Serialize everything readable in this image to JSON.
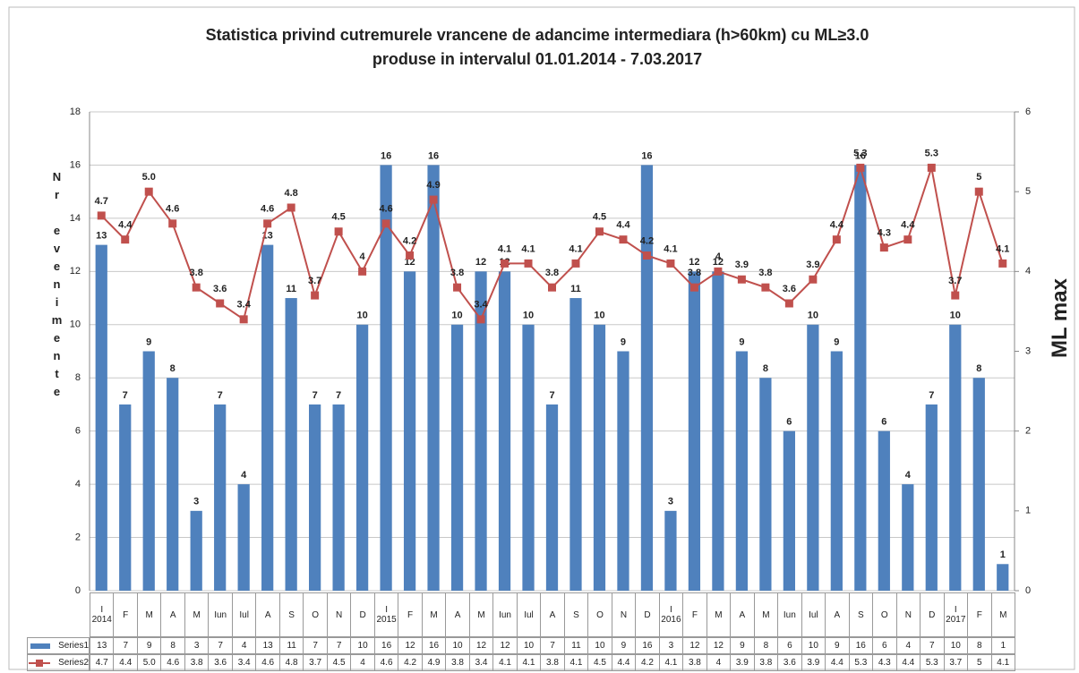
{
  "chart_data": {
    "type": "bar-line",
    "title": "Statistica privind cutremurele vrancene de adancime intermediara (h>60km) cu ML≥3.0 produse in intervalul 01.01.2014 - 7.03.2017",
    "y_label": "Nr evenimente",
    "y2_label": "ML max",
    "categories": [
      "I 2014",
      "F",
      "M",
      "A",
      "M",
      "Iun",
      "Iul",
      "A",
      "S",
      "O",
      "N",
      "D",
      "I 2015",
      "F",
      "M",
      "A",
      "M",
      "Iun",
      "Iul",
      "A",
      "S",
      "O",
      "N",
      "D",
      "I 2016",
      "F",
      "M",
      "A",
      "M",
      "Iun",
      "Iul",
      "A",
      "S",
      "O",
      "N",
      "D",
      "I 2017",
      "F",
      "M"
    ],
    "series": [
      {
        "name": "Series1",
        "type": "bar",
        "color": "#4f81bd",
        "values": [
          13,
          7,
          9,
          8,
          3,
          7,
          4,
          13,
          11,
          7,
          7,
          10,
          16,
          12,
          16,
          10,
          12,
          12,
          10,
          7,
          11,
          10,
          9,
          16,
          3,
          12,
          12,
          9,
          8,
          6,
          10,
          9,
          16,
          6,
          4,
          7,
          10,
          8,
          1
        ]
      },
      {
        "name": "Series2",
        "type": "line",
        "axis": "y2",
        "color": "#c0504d",
        "values": [
          4.7,
          4.4,
          5.0,
          4.6,
          3.8,
          3.6,
          3.4,
          4.6,
          4.8,
          3.7,
          4.5,
          4,
          4.6,
          4.2,
          4.9,
          3.8,
          3.4,
          4.1,
          4.1,
          3.8,
          4.1,
          4.5,
          4.4,
          4.2,
          4.1,
          3.8,
          4,
          3.9,
          3.8,
          3.6,
          3.9,
          4.4,
          5.3,
          4.3,
          4.4,
          5.3,
          3.7,
          5,
          4.1
        ],
        "value_labels": [
          "4.7",
          "4.4",
          "5.0",
          "4.6",
          "3.8",
          "3.6",
          "3.4",
          "4.6",
          "4.8",
          "3.7",
          "4.5",
          "4",
          "4.6",
          "4.2",
          "4.9",
          "3.8",
          "3.4",
          "4.1",
          "4.1",
          "3.8",
          "4.1",
          "4.5",
          "4.4",
          "4.2",
          "4.1",
          "3.8",
          "4",
          "3.9",
          "3.8",
          "3.6",
          "3.9",
          "4.4",
          "5.3",
          "4.3",
          "4.4",
          "5.3",
          "3.7",
          "5",
          "4.1"
        ]
      }
    ],
    "ylim": [
      0,
      18
    ],
    "yticks": [
      0,
      2,
      4,
      6,
      8,
      10,
      12,
      14,
      16,
      18
    ],
    "y2lim": [
      0,
      6
    ],
    "y2ticks": [
      0,
      1,
      2,
      3,
      4,
      5,
      6
    ],
    "grid": true
  }
}
